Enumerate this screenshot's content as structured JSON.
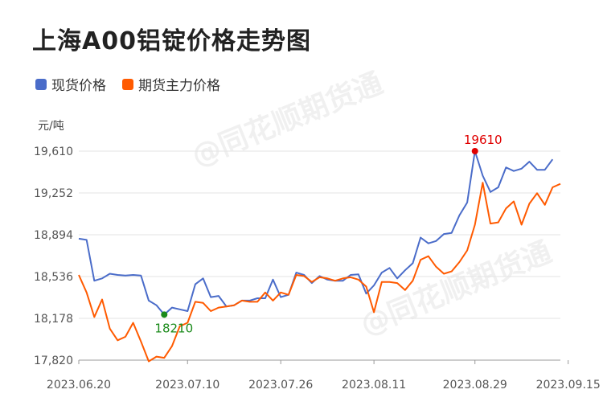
{
  "title": "上海A00铝锭价格走势图",
  "unit": "元/吨",
  "watermark": "@同花顺期货通",
  "colors": {
    "spot": "#4a6cc9",
    "futures": "#ff5a00",
    "grid": "#e3e3e3",
    "axis": "#999999",
    "minLabel": "#1a8a1a",
    "maxLabel": "#e00000"
  },
  "chart_data": {
    "type": "line",
    "legend": "top-left",
    "grid": true,
    "ylim": [
      17820,
      19610
    ],
    "yticks": [
      "19,610",
      "19,252",
      "18,894",
      "18,536",
      "18,178",
      "17,820"
    ],
    "ytick_values": [
      19610,
      19252,
      18894,
      18536,
      18178,
      17820
    ],
    "xtick_labels": [
      "2023.06.20",
      "2023.07.10",
      "2023.07.26",
      "2023.08.11",
      "2023.08.29",
      "2023.09.15"
    ],
    "xtick_index": [
      0,
      14,
      26,
      38,
      51,
      63
    ],
    "series": [
      {
        "name": "现货价格",
        "key": "spot",
        "values": [
          18860,
          18850,
          18500,
          18520,
          18560,
          18550,
          18545,
          18550,
          18545,
          18330,
          18290,
          18210,
          18270,
          18255,
          18240,
          18470,
          18520,
          18360,
          18370,
          18280,
          18290,
          18330,
          18330,
          18350,
          18350,
          18510,
          18360,
          18380,
          18570,
          18550,
          18480,
          18540,
          18510,
          18500,
          18500,
          18550,
          18555,
          18390,
          18460,
          18570,
          18610,
          18520,
          18590,
          18650,
          18870,
          18820,
          18840,
          18900,
          18910,
          19060,
          19170,
          19610,
          19400,
          19260,
          19300,
          19470,
          19440,
          19460,
          19520,
          19450,
          19450,
          19540
        ]
      },
      {
        "name": "期货主力价格",
        "key": "futures",
        "values": [
          18550,
          18400,
          18190,
          18340,
          18090,
          17990,
          18020,
          18140,
          17980,
          17810,
          17850,
          17840,
          17940,
          18110,
          18140,
          18320,
          18310,
          18240,
          18270,
          18280,
          18290,
          18330,
          18320,
          18320,
          18400,
          18330,
          18400,
          18380,
          18550,
          18540,
          18490,
          18530,
          18520,
          18500,
          18520,
          18530,
          18510,
          18450,
          18230,
          18490,
          18490,
          18480,
          18420,
          18500,
          18680,
          18710,
          18620,
          18560,
          18580,
          18660,
          18760,
          18980,
          19340,
          18990,
          19000,
          19120,
          19180,
          18980,
          19160,
          19250,
          19150,
          19300,
          19330
        ]
      }
    ],
    "annotations": [
      {
        "label": "18210",
        "series": "spot",
        "index": 11,
        "value": 18210,
        "kind": "min"
      },
      {
        "label": "19610",
        "series": "spot",
        "index": 51,
        "value": 19610,
        "kind": "max"
      }
    ]
  }
}
